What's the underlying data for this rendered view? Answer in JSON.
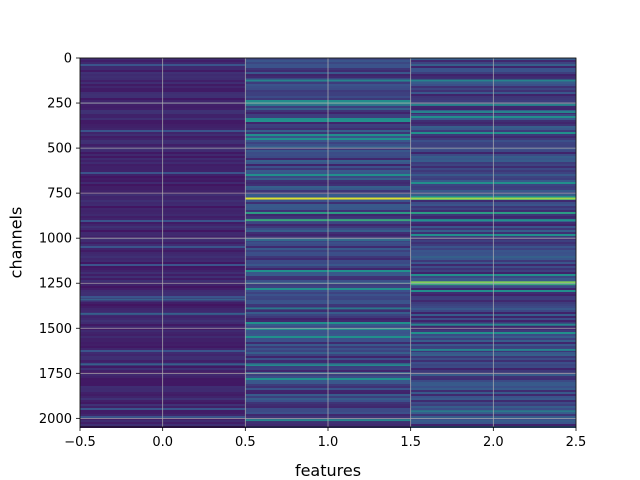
{
  "chart_data": {
    "type": "heatmap",
    "title": "",
    "xlabel": "features",
    "ylabel": "channels",
    "xlim": [
      -0.5,
      2.5
    ],
    "ylim": [
      2048,
      0
    ],
    "y_inverted": true,
    "grid": true,
    "colormap": "viridis",
    "columns": [
      0,
      1,
      2
    ],
    "rows": 2048,
    "x_ticks": [
      {
        "value": -0.5,
        "label": "−0.5"
      },
      {
        "value": 0.0,
        "label": "0.0"
      },
      {
        "value": 0.5,
        "label": "0.5"
      },
      {
        "value": 1.0,
        "label": "1.0"
      },
      {
        "value": 1.5,
        "label": "1.5"
      },
      {
        "value": 2.0,
        "label": "2.0"
      },
      {
        "value": 2.5,
        "label": "2.5"
      }
    ],
    "y_ticks": [
      {
        "value": 0,
        "label": "0"
      },
      {
        "value": 250,
        "label": "250"
      },
      {
        "value": 500,
        "label": "500"
      },
      {
        "value": 750,
        "label": "750"
      },
      {
        "value": 1000,
        "label": "1000"
      },
      {
        "value": 1250,
        "label": "1250"
      },
      {
        "value": 1500,
        "label": "1500"
      },
      {
        "value": 1750,
        "label": "1750"
      },
      {
        "value": 2000,
        "label": "2000"
      }
    ],
    "highlights": [
      {
        "column": 1,
        "channel": 780,
        "intensity": 0.95
      },
      {
        "column": 2,
        "channel": 780,
        "intensity": 0.85
      },
      {
        "column": 1,
        "channel": 860,
        "intensity": 0.55
      },
      {
        "column": 1,
        "channel": 900,
        "intensity": 0.6
      },
      {
        "column": 2,
        "channel": 860,
        "intensity": 0.55
      },
      {
        "column": 2,
        "channel": 900,
        "intensity": 0.5
      },
      {
        "column": 2,
        "channel": 1245,
        "intensity": 0.8
      },
      {
        "column": 2,
        "channel": 1255,
        "intensity": 0.6
      },
      {
        "column": 1,
        "channel": 125,
        "intensity": 0.45
      },
      {
        "column": 2,
        "channel": 125,
        "intensity": 0.45
      },
      {
        "column": 1,
        "channel": 260,
        "intensity": 0.4
      },
      {
        "column": 2,
        "channel": 260,
        "intensity": 0.45
      },
      {
        "column": 2,
        "channel": 300,
        "intensity": 0.45
      },
      {
        "column": 1,
        "channel": 1010,
        "intensity": 0.35
      },
      {
        "column": 1,
        "channel": 1390,
        "intensity": 0.4
      },
      {
        "column": 2,
        "channel": 1480,
        "intensity": 0.45
      },
      {
        "column": 2,
        "channel": 1620,
        "intensity": 0.45
      },
      {
        "column": 1,
        "channel": 1700,
        "intensity": 0.4
      },
      {
        "column": 2,
        "channel": 1960,
        "intensity": 0.4
      },
      {
        "column": 1,
        "channel": 2010,
        "intensity": 0.45
      },
      {
        "column": 0,
        "channel": 1340,
        "intensity": 0.3
      },
      {
        "column": 0,
        "channel": 1420,
        "intensity": 0.3
      },
      {
        "column": 0,
        "channel": 1700,
        "intensity": 0.3
      }
    ]
  }
}
